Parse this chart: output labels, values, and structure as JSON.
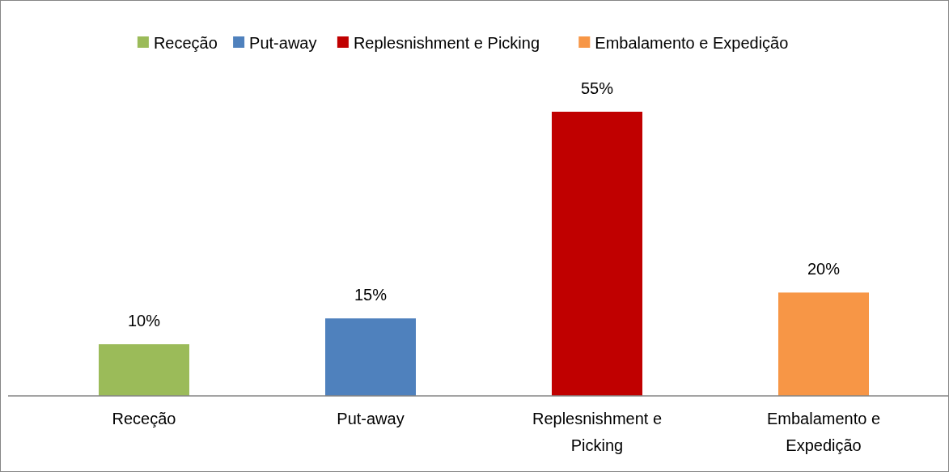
{
  "chart_data": {
    "type": "bar",
    "stacked": true,
    "categories": [
      "Receção",
      "Put-away",
      "Replesnishment e Picking",
      "Embalamento e Expedição"
    ],
    "series": [
      {
        "name": "Receção",
        "color": "#9bbb59",
        "values": [
          10,
          null,
          null,
          null
        ],
        "value_labels": [
          "10%",
          null,
          null,
          null
        ]
      },
      {
        "name": "Put-away",
        "color": "#4f81bd",
        "values": [
          null,
          15,
          null,
          null
        ],
        "value_labels": [
          null,
          "15%",
          null,
          null
        ]
      },
      {
        "name": "Replesnishment e Picking",
        "color": "#c00000",
        "values": [
          null,
          null,
          55,
          null
        ],
        "value_labels": [
          null,
          null,
          "55%",
          null
        ]
      },
      {
        "name": "Embalamento e Expedição",
        "color": "#f79646",
        "values": [
          null,
          null,
          null,
          20
        ],
        "value_labels": [
          null,
          null,
          null,
          "20%"
        ]
      }
    ],
    "legend": "top"
  }
}
